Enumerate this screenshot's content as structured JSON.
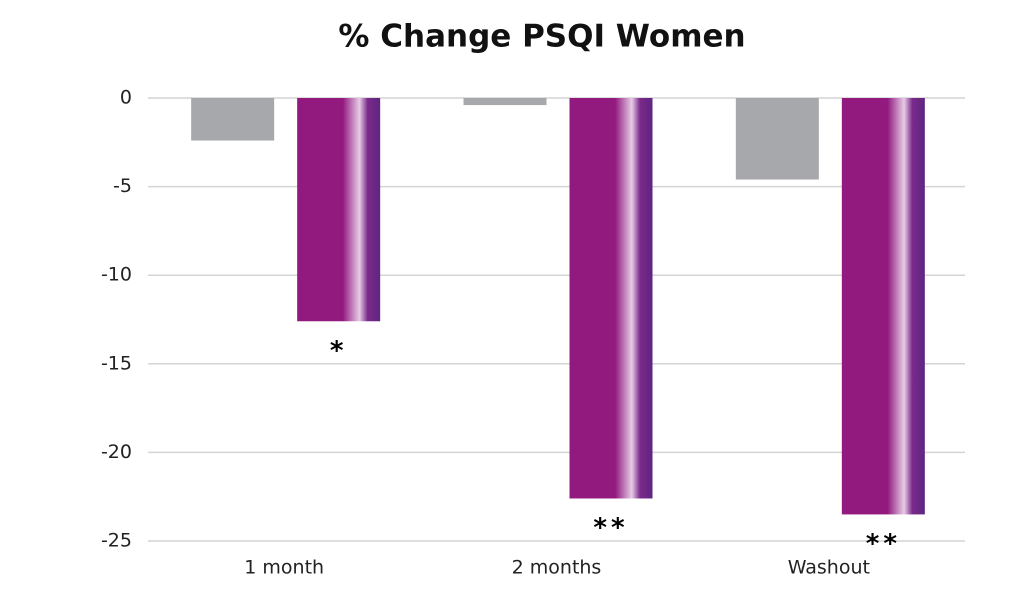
{
  "chart_data": {
    "type": "bar",
    "title": "% Change PSQI Women",
    "categories": [
      "1 month",
      "2 months",
      "Washout"
    ],
    "series": [
      {
        "color": "#a7a8ab",
        "values": [
          -2.4,
          -0.4,
          -4.6
        ]
      },
      {
        "color": "#92197e",
        "values": [
          -12.6,
          -22.6,
          -23.5
        ],
        "annotations": [
          "*",
          "**",
          "**"
        ]
      }
    ],
    "ylim": [
      -25,
      0
    ],
    "yticks": [
      0,
      -5,
      -10,
      -15,
      -20,
      -25
    ],
    "grid": true
  }
}
